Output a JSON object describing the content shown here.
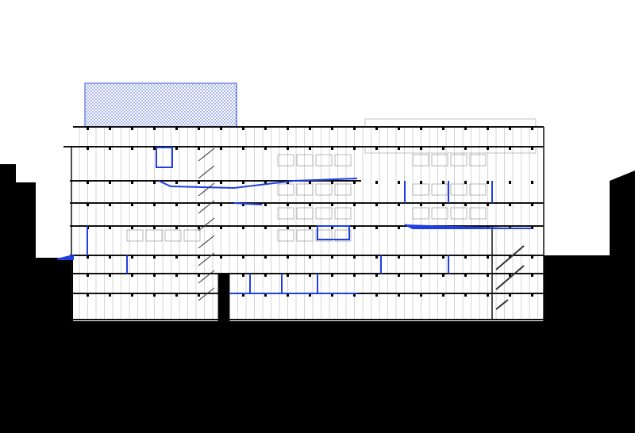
{
  "drawing": {
    "type": "building-section",
    "colors": {
      "background": "#ffffff",
      "ground": "#000000",
      "structure": "#111111",
      "accent": "#1f3fe0",
      "fine_lines": "#b8b8b8",
      "hatch": "#2b48d8"
    }
  }
}
